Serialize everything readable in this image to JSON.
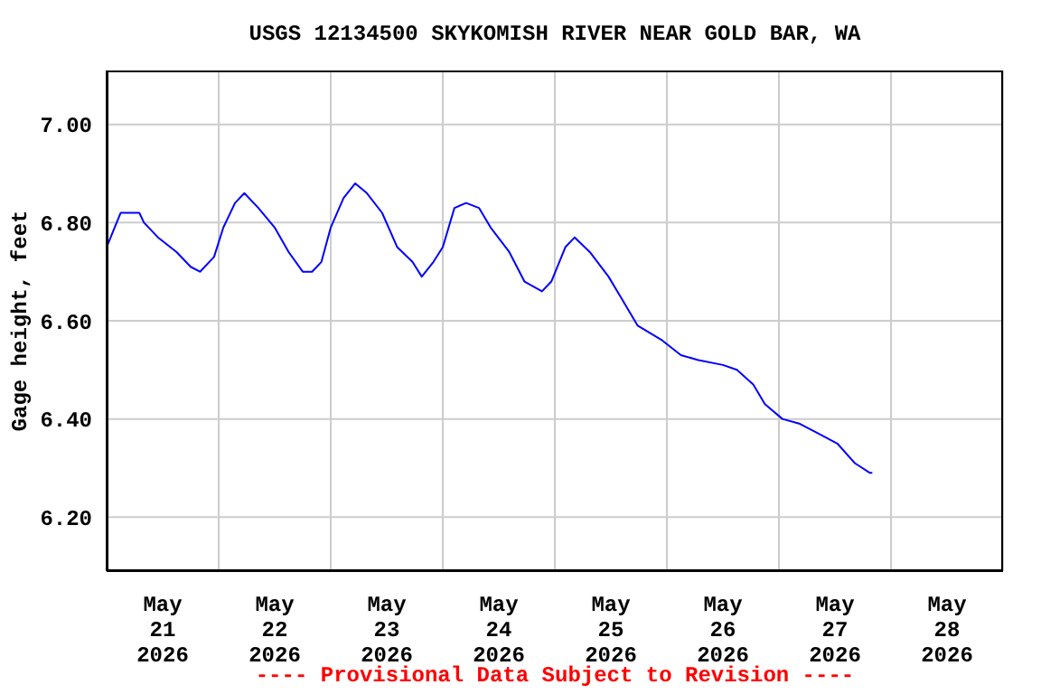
{
  "chart_data": {
    "type": "line",
    "title": "USGS 12134500 SKYKOMISH RIVER NEAR GOLD BAR, WA",
    "ylabel": "Gage height, feet",
    "annotations": [
      "---- Provisional Data Subject to Revision ----"
    ],
    "xlim": [
      "2026-05-21T00:00",
      "2026-05-29T00:00"
    ],
    "xticks": [
      {
        "value": "2026-05-21T00:00",
        "label": null
      },
      {
        "value": "2026-05-21T12:00",
        "label": "May\n21\n2026"
      },
      {
        "value": "2026-05-22T00:00",
        "label": null
      },
      {
        "value": "2026-05-22T12:00",
        "label": "May\n22\n2026"
      },
      {
        "value": "2026-05-23T00:00",
        "label": null
      },
      {
        "value": "2026-05-23T12:00",
        "label": "May\n23\n2026"
      },
      {
        "value": "2026-05-24T00:00",
        "label": null
      },
      {
        "value": "2026-05-24T12:00",
        "label": "May\n24\n2026"
      },
      {
        "value": "2026-05-25T00:00",
        "label": null
      },
      {
        "value": "2026-05-25T12:00",
        "label": "May\n25\n2026"
      },
      {
        "value": "2026-05-26T00:00",
        "label": null
      },
      {
        "value": "2026-05-26T12:00",
        "label": "May\n26\n2026"
      },
      {
        "value": "2026-05-27T00:00",
        "label": null
      },
      {
        "value": "2026-05-27T12:00",
        "label": "May\n27\n2026"
      },
      {
        "value": "2026-05-28T00:00",
        "label": null
      },
      {
        "value": "2026-05-28T12:00",
        "label": "May\n28\n2026"
      },
      {
        "value": "2026-05-29T00:00",
        "label": null
      }
    ],
    "ylim": [
      6.09,
      7.11
    ],
    "yticks": [
      {
        "value": 6.2,
        "label": "6.20"
      },
      {
        "value": 6.4,
        "label": "6.40"
      },
      {
        "value": 6.6,
        "label": "6.60"
      },
      {
        "value": 6.8,
        "label": "6.80"
      },
      {
        "value": 7.0,
        "label": "7.00"
      }
    ],
    "grid": true,
    "marker": "none",
    "line_style": "solid",
    "x": [
      "2026-05-21T00:00",
      "2026-05-21T03:00",
      "2026-05-21T07:00",
      "2026-05-21T08:00",
      "2026-05-21T11:00",
      "2026-05-21T15:00",
      "2026-05-21T18:00",
      "2026-05-21T20:00",
      "2026-05-21T23:00",
      "2026-05-22T01:00",
      "2026-05-22T03:30",
      "2026-05-22T05:30",
      "2026-05-22T08:30",
      "2026-05-22T12:00",
      "2026-05-22T15:00",
      "2026-05-22T18:00",
      "2026-05-22T20:00",
      "2026-05-22T22:00",
      "2026-05-23T00:00",
      "2026-05-23T02:45",
      "2026-05-23T05:15",
      "2026-05-23T07:45",
      "2026-05-23T11:00",
      "2026-05-23T14:15",
      "2026-05-23T17:30",
      "2026-05-23T19:30",
      "2026-05-23T22:00",
      "2026-05-24T00:00",
      "2026-05-24T02:30",
      "2026-05-24T05:00",
      "2026-05-24T07:45",
      "2026-05-24T10:15",
      "2026-05-24T14:15",
      "2026-05-24T17:30",
      "2026-05-24T21:15",
      "2026-05-24T23:15",
      "2026-05-25T02:15",
      "2026-05-25T04:15",
      "2026-05-25T07:30",
      "2026-05-25T11:30",
      "2026-05-25T14:00",
      "2026-05-25T17:45",
      "2026-05-25T23:00",
      "2026-05-26T03:00",
      "2026-05-26T06:45",
      "2026-05-26T12:00",
      "2026-05-26T15:00",
      "2026-05-26T18:30",
      "2026-05-26T21:00",
      "2026-05-27T00:45",
      "2026-05-27T04:30",
      "2026-05-27T08:30",
      "2026-05-27T12:30",
      "2026-05-27T16:15",
      "2026-05-27T19:30",
      "2026-05-27T20:00"
    ],
    "series": [
      {
        "color": "#0000ff",
        "values": [
          6.75,
          6.82,
          6.82,
          6.8,
          6.77,
          6.74,
          6.71,
          6.7,
          6.73,
          6.79,
          6.84,
          6.86,
          6.83,
          6.79,
          6.74,
          6.7,
          6.7,
          6.72,
          6.79,
          6.85,
          6.88,
          6.86,
          6.82,
          6.75,
          6.72,
          6.69,
          6.72,
          6.75,
          6.83,
          6.84,
          6.83,
          6.79,
          6.74,
          6.68,
          6.66,
          6.68,
          6.75,
          6.77,
          6.74,
          6.69,
          6.65,
          6.59,
          6.56,
          6.53,
          6.52,
          6.51,
          6.5,
          6.47,
          6.43,
          6.4,
          6.39,
          6.37,
          6.35,
          6.31,
          6.29,
          6.29
        ]
      }
    ]
  }
}
